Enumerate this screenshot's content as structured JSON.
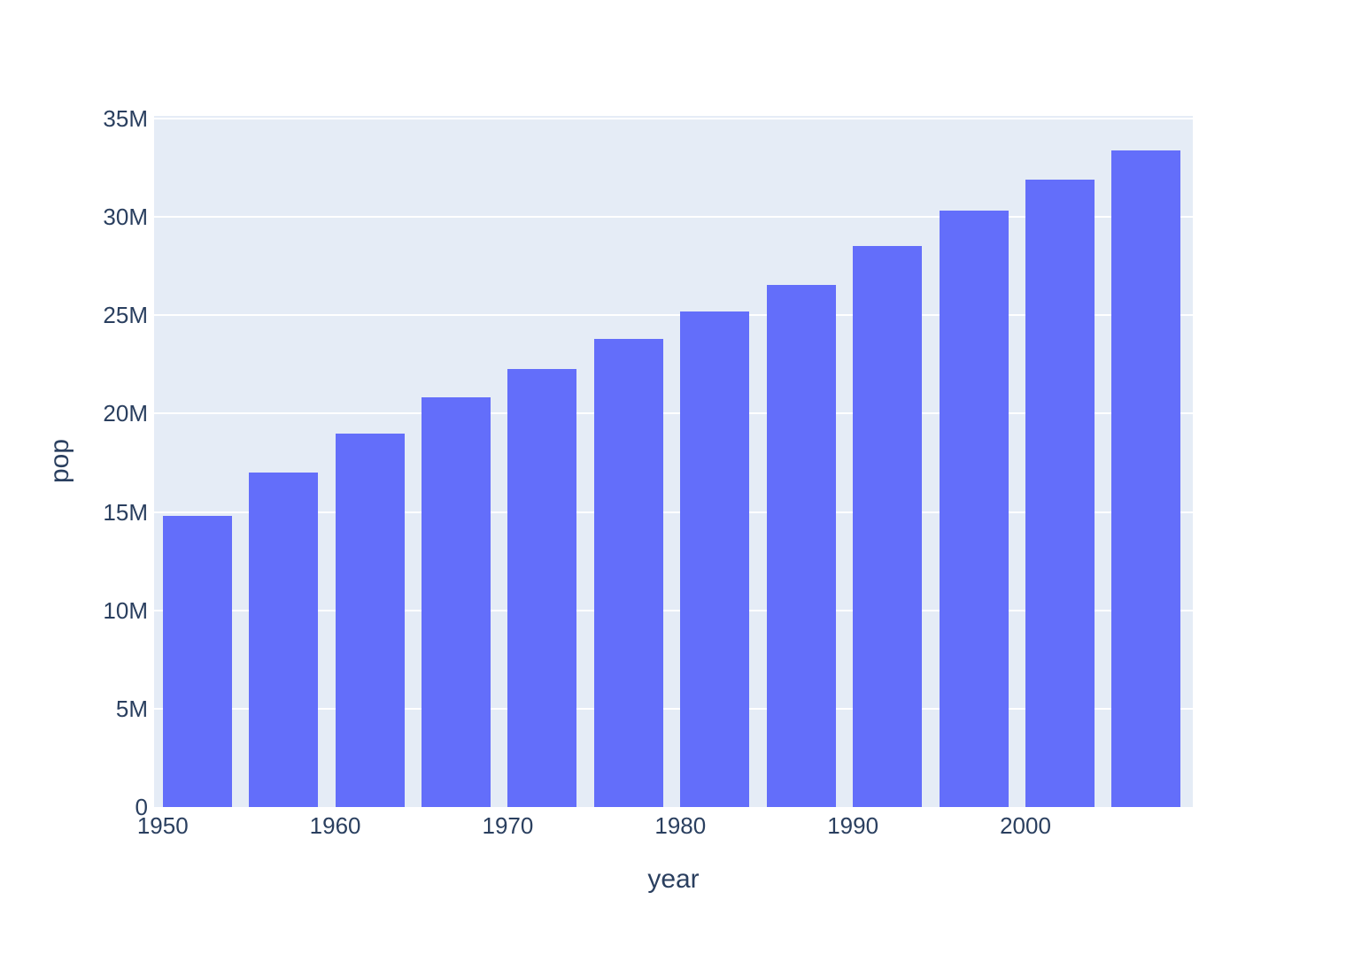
{
  "chart_data": {
    "type": "bar",
    "title": "",
    "xlabel": "year",
    "ylabel": "pop",
    "categories": [
      1952,
      1957,
      1962,
      1967,
      1972,
      1977,
      1982,
      1987,
      1992,
      1997,
      2002,
      2007
    ],
    "values": [
      14785584,
      17010154,
      18985849,
      20819767,
      22284500,
      23796400,
      25201900,
      26549700,
      28523502,
      30305843,
      31902268,
      33390141
    ],
    "series_name": "pop",
    "xlim": [
      1949.5,
      2009.7
    ],
    "ylim": [
      0,
      35130000
    ],
    "bar_width_x_units": 4,
    "x_ticks": [
      {
        "value": 1950,
        "label": "1950"
      },
      {
        "value": 1960,
        "label": "1960"
      },
      {
        "value": 1970,
        "label": "1970"
      },
      {
        "value": 1980,
        "label": "1980"
      },
      {
        "value": 1990,
        "label": "1990"
      },
      {
        "value": 2000,
        "label": "2000"
      }
    ],
    "y_ticks": [
      {
        "value": 0,
        "label": "0"
      },
      {
        "value": 5000000,
        "label": "5M"
      },
      {
        "value": 10000000,
        "label": "10M"
      },
      {
        "value": 15000000,
        "label": "15M"
      },
      {
        "value": 20000000,
        "label": "20M"
      },
      {
        "value": 25000000,
        "label": "25M"
      },
      {
        "value": 30000000,
        "label": "30M"
      },
      {
        "value": 35000000,
        "label": "35M"
      }
    ],
    "grid": true,
    "legend_position": "none",
    "colors": {
      "bar": "#636efa",
      "plot_bg": "#e5ecf6",
      "grid": "#ffffff",
      "text": "#2a3f5f",
      "page_bg": "#ffffff"
    }
  }
}
